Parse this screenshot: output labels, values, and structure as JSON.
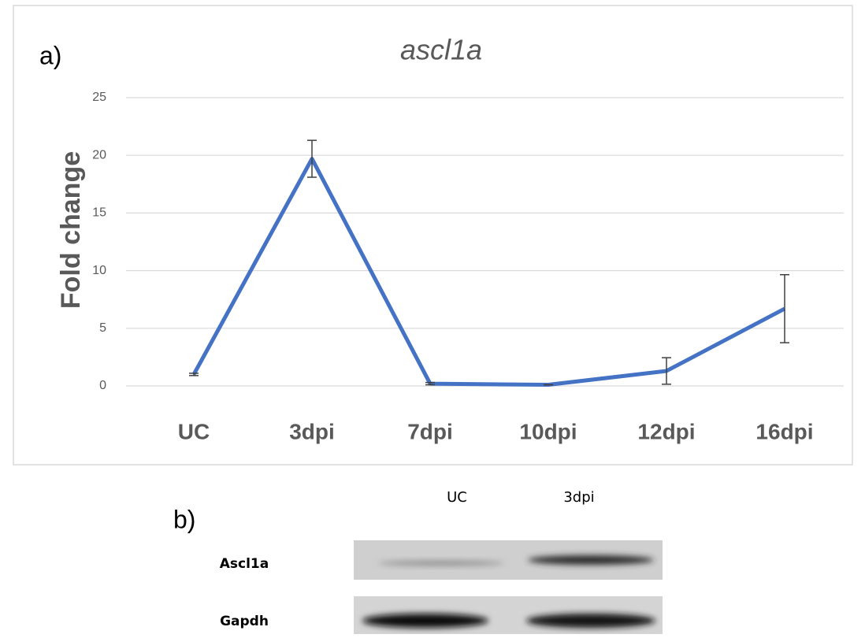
{
  "panel_a_label": "a)",
  "chart_data": {
    "type": "line",
    "title": "ascl1a",
    "y_label": "Fold change",
    "categories": [
      "UC",
      "3dpi",
      "7dpi",
      "10dpi",
      "12dpi",
      "16dpi"
    ],
    "values": [
      1,
      19.7,
      0.2,
      0.1,
      1.3,
      6.7
    ],
    "errors": [
      0.1,
      1.6,
      0.1,
      0,
      1.15,
      2.95
    ],
    "color": "#4472c4",
    "ylim": [
      0,
      25
    ],
    "yticks": [
      0,
      5,
      10,
      15,
      20,
      25
    ],
    "grid": true
  },
  "blot": {
    "panel_label": "b)",
    "lanes": [
      "UC",
      "3dpi"
    ],
    "rows": [
      "Ascl1a",
      "Gapdh"
    ]
  }
}
